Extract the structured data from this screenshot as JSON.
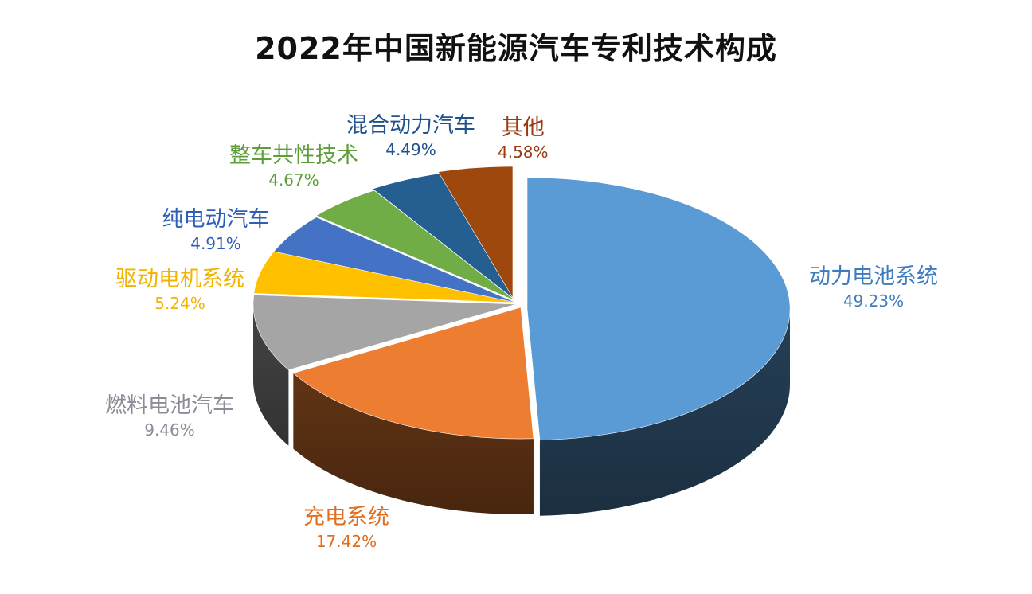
{
  "chart_data": {
    "type": "pie",
    "title": "2022年中国新能源汽车专利技术构成",
    "style": "3d-exploded-pie",
    "slices": [
      {
        "label": "动力电池系统",
        "value": 49.23,
        "display": "49.23%",
        "color": "#5B9BD5",
        "label_color": "#3E7CC0"
      },
      {
        "label": "充电系统",
        "value": 17.42,
        "display": "17.42%",
        "color": "#ED7D31",
        "label_color": "#E06E1E"
      },
      {
        "label": "燃料电池汽车",
        "value": 9.46,
        "display": "9.46%",
        "color": "#A5A5A5",
        "label_color": "#8C8C98"
      },
      {
        "label": "驱动电机系统",
        "value": 5.24,
        "display": "5.24%",
        "color": "#FFC000",
        "label_color": "#F0B400"
      },
      {
        "label": "纯电动汽车",
        "value": 4.91,
        "display": "4.91%",
        "color": "#4472C4",
        "label_color": "#2F5FB5"
      },
      {
        "label": "整车共性技术",
        "value": 4.67,
        "display": "4.67%",
        "color": "#70AD47",
        "label_color": "#5E9E3A"
      },
      {
        "label": "混合动力汽车",
        "value": 4.49,
        "display": "4.49%",
        "color": "#255E91",
        "label_color": "#23518A"
      },
      {
        "label": "其他",
        "value": 4.58,
        "display": "4.58%",
        "color": "#9E480E",
        "label_color": "#9A3A12"
      }
    ]
  }
}
